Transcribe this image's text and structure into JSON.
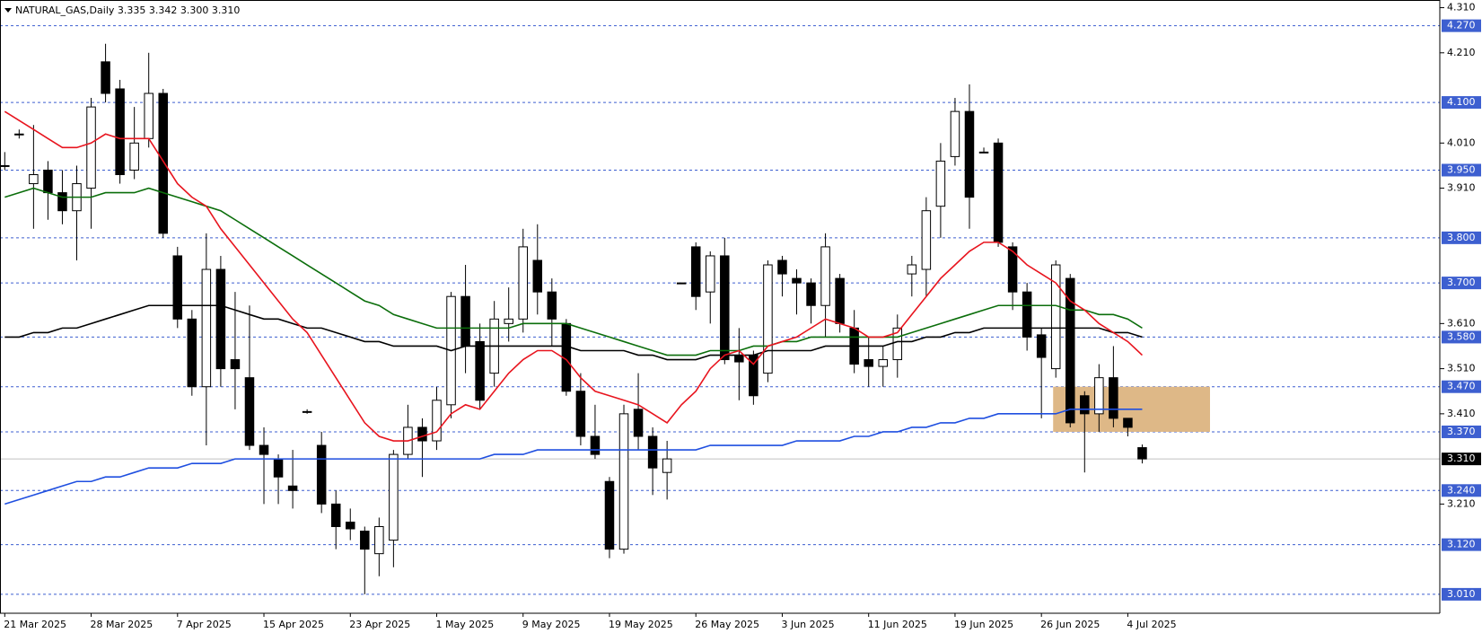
{
  "chart_data": {
    "type": "candlestick",
    "title": "NATURAL_GAS,Daily  3.335 3.342 3.300 3.310",
    "categories": [
      "21 Mar 2025",
      null,
      null,
      null,
      null,
      null,
      "28 Mar 2025",
      null,
      null,
      null,
      null,
      null,
      "7 Apr 2025",
      null,
      null,
      null,
      null,
      null,
      "15 Apr 2025",
      null,
      null,
      null,
      null,
      null,
      "23 Apr 2025",
      null,
      null,
      null,
      null,
      null,
      "1 May 2025",
      null,
      null,
      null,
      null,
      null,
      "9 May 2025",
      null,
      null,
      null,
      null,
      null,
      "19 May 2025",
      null,
      null,
      null,
      null,
      null,
      "26 May 2025",
      null,
      null,
      null,
      null,
      null,
      "3 Jun 2025",
      null,
      null,
      null,
      null,
      null,
      "11 Jun 2025",
      null,
      null,
      null,
      null,
      null,
      "19 Jun 2025",
      null,
      null,
      null,
      null,
      null,
      "26 Jun 2025",
      null,
      null,
      null,
      null,
      null,
      "4 Jul 2025",
      null
    ],
    "open": [
      3.96,
      4.03,
      3.92,
      3.95,
      3.9,
      3.86,
      3.91,
      4.19,
      4.13,
      3.95,
      4.02,
      4.12,
      3.76,
      3.62,
      3.47,
      3.73,
      3.53,
      3.49,
      3.34,
      3.31,
      3.25,
      3.415,
      3.34,
      3.21,
      3.17,
      3.15,
      3.1,
      3.13,
      3.32,
      3.38,
      3.35,
      3.43,
      3.67,
      3.57,
      3.5,
      3.61,
      3.62,
      3.75,
      3.68,
      3.61,
      3.46,
      3.36,
      3.26,
      3.11,
      3.42,
      3.36,
      3.28,
      3.7,
      3.78,
      3.68,
      3.76,
      3.54,
      3.54,
      3.5,
      3.75,
      3.71,
      3.7,
      3.65,
      3.71,
      3.6,
      3.53,
      3.515,
      3.53,
      3.72,
      3.73,
      3.87,
      3.98,
      4.08,
      3.99,
      4.01,
      3.78,
      3.68,
      3.585,
      3.51,
      3.71,
      3.45,
      3.41,
      3.49,
      3.4,
      3.335
    ],
    "high": [
      3.99,
      4.04,
      4.05,
      3.97,
      3.95,
      3.96,
      4.11,
      4.23,
      4.15,
      4.09,
      4.21,
      4.13,
      3.78,
      3.64,
      3.81,
      3.76,
      3.68,
      3.65,
      3.38,
      3.32,
      3.33,
      3.42,
      3.37,
      3.24,
      3.2,
      3.16,
      3.18,
      3.33,
      3.43,
      3.4,
      3.47,
      3.68,
      3.74,
      3.61,
      3.66,
      3.69,
      3.82,
      3.83,
      3.71,
      3.62,
      3.5,
      3.43,
      3.27,
      3.43,
      3.5,
      3.38,
      3.35,
      3.7,
      3.79,
      3.77,
      3.8,
      3.6,
      3.55,
      3.75,
      3.76,
      3.73,
      3.71,
      3.81,
      3.72,
      3.64,
      3.58,
      3.56,
      3.63,
      3.76,
      3.89,
      4.01,
      4.11,
      4.14,
      4.0,
      4.02,
      3.79,
      3.7,
      3.6,
      3.75,
      3.72,
      3.46,
      3.52,
      3.56,
      3.4,
      3.342
    ],
    "low": [
      3.95,
      4.02,
      3.82,
      3.84,
      3.83,
      3.75,
      3.82,
      4.1,
      3.92,
      3.93,
      4.0,
      3.8,
      3.6,
      3.45,
      3.34,
      3.47,
      3.42,
      3.33,
      3.21,
      3.21,
      3.2,
      3.41,
      3.19,
      3.11,
      3.13,
      3.01,
      3.05,
      3.07,
      3.31,
      3.27,
      3.33,
      3.4,
      3.5,
      3.42,
      3.47,
      3.57,
      3.59,
      3.63,
      3.56,
      3.45,
      3.34,
      3.31,
      3.09,
      3.1,
      3.33,
      3.23,
      3.22,
      3.7,
      3.64,
      3.61,
      3.52,
      3.44,
      3.43,
      3.48,
      3.67,
      3.63,
      3.61,
      3.58,
      3.59,
      3.5,
      3.47,
      3.47,
      3.49,
      3.67,
      3.67,
      3.8,
      3.96,
      3.82,
      3.99,
      3.78,
      3.64,
      3.55,
      3.4,
      3.49,
      3.38,
      3.28,
      3.37,
      3.38,
      3.36,
      3.3
    ],
    "close": [
      3.96,
      4.03,
      3.94,
      3.9,
      3.86,
      3.92,
      4.09,
      4.12,
      3.94,
      4.01,
      4.12,
      3.81,
      3.62,
      3.47,
      3.73,
      3.51,
      3.51,
      3.34,
      3.32,
      3.27,
      3.24,
      3.415,
      3.21,
      3.16,
      3.155,
      3.11,
      3.16,
      3.32,
      3.38,
      3.35,
      3.44,
      3.67,
      3.56,
      3.44,
      3.62,
      3.62,
      3.78,
      3.68,
      3.62,
      3.46,
      3.36,
      3.32,
      3.11,
      3.41,
      3.36,
      3.29,
      3.31,
      3.7,
      3.67,
      3.76,
      3.53,
      3.525,
      3.45,
      3.74,
      3.72,
      3.7,
      3.65,
      3.78,
      3.61,
      3.52,
      3.515,
      3.53,
      3.6,
      3.74,
      3.86,
      3.97,
      4.08,
      3.89,
      3.99,
      3.79,
      3.68,
      3.58,
      3.535,
      3.74,
      3.39,
      3.41,
      3.49,
      3.4,
      3.38,
      3.31
    ],
    "up_color": "#ffffff",
    "down_color": "#000000",
    "series": [
      {
        "color": "#1f4fe0",
        "values": [
          3.21,
          3.22,
          3.23,
          3.24,
          3.25,
          3.26,
          3.26,
          3.27,
          3.27,
          3.28,
          3.29,
          3.29,
          3.29,
          3.3,
          3.3,
          3.3,
          3.31,
          3.31,
          3.31,
          3.31,
          3.31,
          3.31,
          3.31,
          3.31,
          3.31,
          3.31,
          3.31,
          3.31,
          3.31,
          3.31,
          3.31,
          3.31,
          3.31,
          3.31,
          3.32,
          3.32,
          3.32,
          3.33,
          3.33,
          3.33,
          3.33,
          3.33,
          3.33,
          3.33,
          3.33,
          3.33,
          3.33,
          3.33,
          3.33,
          3.34,
          3.34,
          3.34,
          3.34,
          3.34,
          3.34,
          3.35,
          3.35,
          3.35,
          3.35,
          3.36,
          3.36,
          3.37,
          3.37,
          3.38,
          3.38,
          3.39,
          3.39,
          3.4,
          3.4,
          3.41,
          3.41,
          3.41,
          3.41,
          3.41,
          3.42,
          3.42,
          3.42,
          3.42,
          3.42,
          3.42
        ]
      },
      {
        "color": "#000000",
        "values": [
          3.58,
          3.58,
          3.59,
          3.59,
          3.6,
          3.6,
          3.61,
          3.62,
          3.63,
          3.64,
          3.65,
          3.65,
          3.65,
          3.65,
          3.65,
          3.65,
          3.64,
          3.63,
          3.62,
          3.62,
          3.61,
          3.6,
          3.6,
          3.59,
          3.58,
          3.57,
          3.57,
          3.56,
          3.56,
          3.56,
          3.56,
          3.55,
          3.56,
          3.56,
          3.56,
          3.56,
          3.56,
          3.56,
          3.56,
          3.56,
          3.55,
          3.55,
          3.55,
          3.55,
          3.54,
          3.54,
          3.53,
          3.53,
          3.53,
          3.54,
          3.54,
          3.54,
          3.54,
          3.55,
          3.55,
          3.55,
          3.55,
          3.56,
          3.56,
          3.56,
          3.56,
          3.56,
          3.57,
          3.57,
          3.58,
          3.58,
          3.59,
          3.59,
          3.6,
          3.6,
          3.6,
          3.6,
          3.6,
          3.6,
          3.6,
          3.6,
          3.6,
          3.59,
          3.59,
          3.58
        ]
      },
      {
        "color": "#0b6e0b",
        "values": [
          3.89,
          3.9,
          3.91,
          3.9,
          3.89,
          3.89,
          3.89,
          3.9,
          3.9,
          3.9,
          3.91,
          3.9,
          3.89,
          3.88,
          3.87,
          3.86,
          3.84,
          3.82,
          3.8,
          3.78,
          3.76,
          3.74,
          3.72,
          3.7,
          3.68,
          3.66,
          3.65,
          3.63,
          3.62,
          3.61,
          3.6,
          3.6,
          3.6,
          3.6,
          3.6,
          3.6,
          3.61,
          3.61,
          3.61,
          3.61,
          3.6,
          3.59,
          3.58,
          3.57,
          3.56,
          3.55,
          3.54,
          3.54,
          3.54,
          3.55,
          3.55,
          3.55,
          3.56,
          3.56,
          3.57,
          3.57,
          3.58,
          3.58,
          3.58,
          3.58,
          3.58,
          3.58,
          3.58,
          3.59,
          3.6,
          3.61,
          3.62,
          3.63,
          3.64,
          3.65,
          3.65,
          3.65,
          3.65,
          3.65,
          3.64,
          3.64,
          3.63,
          3.63,
          3.62,
          3.6
        ]
      },
      {
        "color": "#e8141e",
        "values": [
          4.08,
          4.06,
          4.04,
          4.02,
          4.0,
          4.0,
          4.01,
          4.03,
          4.02,
          4.02,
          4.02,
          3.97,
          3.92,
          3.89,
          3.87,
          3.82,
          3.78,
          3.74,
          3.7,
          3.66,
          3.62,
          3.59,
          3.54,
          3.49,
          3.44,
          3.39,
          3.36,
          3.35,
          3.35,
          3.36,
          3.37,
          3.41,
          3.43,
          3.42,
          3.46,
          3.5,
          3.53,
          3.55,
          3.55,
          3.53,
          3.49,
          3.46,
          3.45,
          3.44,
          3.43,
          3.41,
          3.39,
          3.43,
          3.46,
          3.51,
          3.54,
          3.55,
          3.52,
          3.56,
          3.57,
          3.58,
          3.6,
          3.62,
          3.61,
          3.6,
          3.58,
          3.58,
          3.59,
          3.63,
          3.67,
          3.71,
          3.74,
          3.77,
          3.79,
          3.79,
          3.77,
          3.74,
          3.72,
          3.7,
          3.66,
          3.64,
          3.61,
          3.59,
          3.57,
          3.54
        ]
      }
    ],
    "zone": {
      "low": 3.37,
      "high": 3.47,
      "color": "#deb887"
    },
    "ylim": [
      2.968,
      4.327
    ],
    "yticks": [
      {
        "value": 4.31,
        "label": "4.310"
      },
      {
        "value": 4.21,
        "label": "4.210"
      },
      {
        "value": 4.01,
        "label": "4.010"
      },
      {
        "value": 3.91,
        "label": "3.910"
      },
      {
        "value": 3.61,
        "label": "3.610"
      },
      {
        "value": 3.51,
        "label": "3.510"
      },
      {
        "value": 3.41,
        "label": "3.410"
      },
      {
        "value": 3.21,
        "label": "3.210"
      }
    ],
    "levels": [
      {
        "value": 4.27,
        "label": "4.270"
      },
      {
        "value": 4.1,
        "label": "4.100"
      },
      {
        "value": 3.95,
        "label": "3.950"
      },
      {
        "value": 3.8,
        "label": "3.800"
      },
      {
        "value": 3.7,
        "label": "3.700"
      },
      {
        "value": 3.58,
        "label": "3.580"
      },
      {
        "value": 3.47,
        "label": "3.470"
      },
      {
        "value": 3.37,
        "label": "3.370"
      },
      {
        "value": 3.24,
        "label": "3.240"
      },
      {
        "value": 3.12,
        "label": "3.120"
      },
      {
        "value": 3.01,
        "label": "3.010"
      }
    ],
    "level_color": "#3d5fd0",
    "last_price": {
      "value": 3.31,
      "label": "3.310"
    }
  }
}
